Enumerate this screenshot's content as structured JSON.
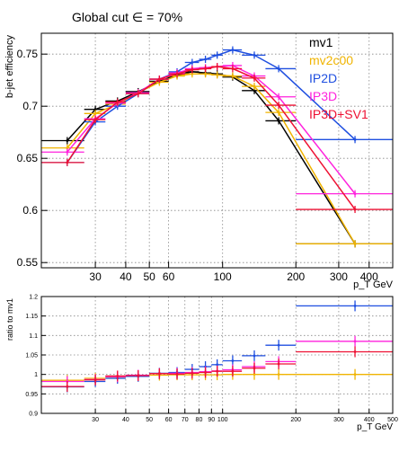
{
  "title": "Global cut ∈ = 70%",
  "colors": {
    "mv1": "#000000",
    "mv2c00": "#f0b400",
    "IP2D": "#1f4fe0",
    "IP3D": "#ff22dd",
    "IP3D+SV1": "#ee1133"
  },
  "chart_data": [
    {
      "type": "line",
      "panel": "efficiency",
      "xlabel": "p_T GeV",
      "ylabel": "b-jet efficiency",
      "xscale": "log",
      "xlim": [
        18,
        500
      ],
      "ylim": [
        0.545,
        0.77
      ],
      "grid": true,
      "legend_placement": "top-right",
      "xticks": [
        30,
        40,
        50,
        60,
        100,
        200,
        300,
        400
      ],
      "yticks": [
        0.55,
        0.6,
        0.65,
        0.7,
        0.75
      ],
      "x": [
        23,
        30,
        37,
        45,
        55,
        65,
        75,
        85,
        95,
        110,
        135,
        170,
        350
      ],
      "xerr_low": [
        18,
        27,
        33,
        40,
        50,
        60,
        70,
        80,
        90,
        100,
        120,
        150,
        200
      ],
      "xerr_high": [
        27,
        33,
        40,
        50,
        60,
        70,
        80,
        90,
        100,
        120,
        150,
        200,
        500
      ],
      "series": [
        {
          "name": "mv1",
          "color_key": "mv1",
          "values": [
            0.667,
            0.697,
            0.705,
            0.714,
            0.724,
            0.73,
            0.733,
            0.732,
            0.731,
            0.728,
            0.715,
            0.686,
            0.568
          ]
        },
        {
          "name": "mv2c00",
          "color_key": "mv2c00",
          "values": [
            0.66,
            0.693,
            0.702,
            0.713,
            0.723,
            0.729,
            0.731,
            0.731,
            0.73,
            0.729,
            0.719,
            0.694,
            0.568
          ]
        },
        {
          "name": "IP2D",
          "color_key": "IP2D",
          "values": [
            0.646,
            0.685,
            0.7,
            0.712,
            0.726,
            0.733,
            0.742,
            0.745,
            0.749,
            0.754,
            0.749,
            0.736,
            0.668
          ]
        },
        {
          "name": "IP3D",
          "color_key": "IP3D",
          "values": [
            0.656,
            0.688,
            0.703,
            0.713,
            0.726,
            0.732,
            0.736,
            0.737,
            0.738,
            0.739,
            0.729,
            0.709,
            0.616
          ]
        },
        {
          "name": "IP3D+SV1",
          "color_key": "IP3D+SV1",
          "values": [
            0.646,
            0.687,
            0.704,
            0.712,
            0.726,
            0.731,
            0.735,
            0.736,
            0.738,
            0.736,
            0.727,
            0.701,
            0.601
          ]
        }
      ]
    },
    {
      "type": "line",
      "panel": "ratio",
      "xlabel": "p_T GeV",
      "ylabel": "ratio to mv1",
      "xscale": "log",
      "xlim": [
        18,
        500
      ],
      "ylim": [
        0.9,
        1.2
      ],
      "grid": true,
      "xticks": [
        30,
        40,
        50,
        60,
        70,
        80,
        90,
        100,
        200,
        300,
        400,
        500
      ],
      "yticks": [
        0.9,
        0.95,
        1,
        1.05,
        1.1,
        1.15,
        1.2
      ],
      "x": [
        23,
        30,
        37,
        45,
        55,
        65,
        75,
        85,
        95,
        110,
        135,
        170,
        350
      ],
      "xerr_low": [
        18,
        27,
        33,
        40,
        50,
        60,
        70,
        80,
        90,
        100,
        120,
        150,
        200
      ],
      "xerr_high": [
        27,
        33,
        40,
        50,
        60,
        70,
        80,
        90,
        100,
        120,
        150,
        200,
        500
      ],
      "series": [
        {
          "name": "mv2c00",
          "color_key": "mv2c00",
          "values": [
            0.985,
            0.99,
            0.993,
            0.996,
            0.998,
            0.999,
            0.999,
            0.999,
            0.999,
            1.0,
            1.0,
            1.0,
            1.0
          ]
        },
        {
          "name": "IP2D",
          "color_key": "IP2D",
          "values": [
            0.968,
            0.982,
            0.99,
            0.995,
            1.003,
            1.005,
            1.013,
            1.02,
            1.025,
            1.035,
            1.048,
            1.075,
            1.176
          ]
        },
        {
          "name": "IP3D",
          "color_key": "IP3D",
          "values": [
            0.982,
            0.987,
            0.994,
            0.998,
            1.002,
            1.003,
            1.005,
            1.007,
            1.009,
            1.012,
            1.02,
            1.033,
            1.085
          ]
        },
        {
          "name": "IP3D+SV1",
          "color_key": "IP3D+SV1",
          "values": [
            0.969,
            0.986,
            0.996,
            0.997,
            1.002,
            1.001,
            1.003,
            1.005,
            1.008,
            1.008,
            1.016,
            1.027,
            1.058
          ]
        }
      ]
    }
  ],
  "legend": {
    "entries": [
      {
        "label": "mv1",
        "color_key": "mv1"
      },
      {
        "label": "mv2c00",
        "color_key": "mv2c00"
      },
      {
        "label": "IP2D",
        "color_key": "IP2D"
      },
      {
        "label": "IP3D",
        "color_key": "IP3D"
      },
      {
        "label": "IP3D+SV1",
        "color_key": "IP3D+SV1"
      }
    ]
  }
}
